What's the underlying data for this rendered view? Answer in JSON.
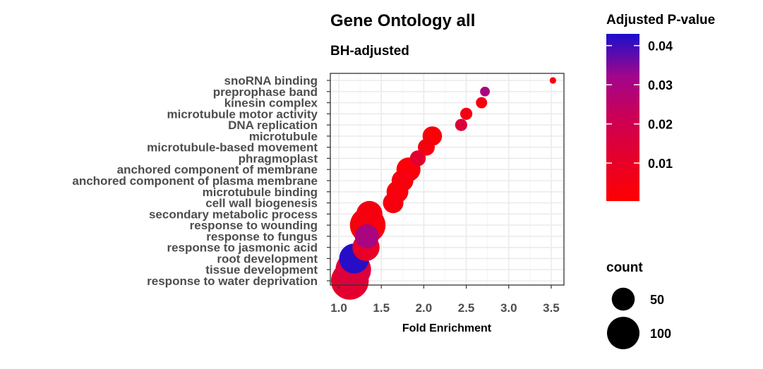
{
  "chart_data": {
    "type": "scatter",
    "title": "Gene Ontology all",
    "subtitle": "BH-adjusted",
    "xlabel": "Fold Enrichment",
    "xlim": [
      0.9,
      3.65
    ],
    "xticks": [
      1.0,
      1.5,
      2.0,
      2.5,
      3.0,
      3.5
    ],
    "xtick_labels": [
      "1.0",
      "1.5",
      "2.0",
      "2.5",
      "3.0",
      "3.5"
    ],
    "grid": true,
    "categories": [
      "snoRNA binding",
      "preprophase band",
      "kinesin complex",
      "microtubule motor activity",
      "DNA replication",
      "microtubule",
      "microtubule-based movement",
      "phragmoplast",
      "anchored component of membrane",
      "anchored component of plasma membrane",
      "microtubule binding",
      "cell wall biogenesis",
      "secondary metabolic process",
      "response to wounding",
      "response to fungus",
      "response to jasmonic acid",
      "root development",
      "tissue development",
      "response to water deprivation"
    ],
    "points": [
      {
        "term": "snoRNA binding",
        "fold_enrichment": 3.52,
        "count": 4,
        "p_adj": 0.003
      },
      {
        "term": "preprophase band",
        "fold_enrichment": 2.72,
        "count": 9,
        "p_adj": 0.03
      },
      {
        "term": "kinesin complex",
        "fold_enrichment": 2.68,
        "count": 12,
        "p_adj": 0.004
      },
      {
        "term": "microtubule motor activity",
        "fold_enrichment": 2.5,
        "count": 14,
        "p_adj": 0.005
      },
      {
        "term": "DNA replication",
        "fold_enrichment": 2.44,
        "count": 14,
        "p_adj": 0.015
      },
      {
        "term": "microtubule",
        "fold_enrichment": 2.1,
        "count": 36,
        "p_adj": 0.002
      },
      {
        "term": "microtubule-based movement",
        "fold_enrichment": 2.03,
        "count": 27,
        "p_adj": 0.004
      },
      {
        "term": "phragmoplast",
        "fold_enrichment": 1.93,
        "count": 24,
        "p_adj": 0.012
      },
      {
        "term": "anchored component of membrane",
        "fold_enrichment": 1.82,
        "count": 55,
        "p_adj": 0.002
      },
      {
        "term": "anchored component of plasma membrane",
        "fold_enrichment": 1.75,
        "count": 45,
        "p_adj": 0.004
      },
      {
        "term": "microtubule binding",
        "fold_enrichment": 1.69,
        "count": 45,
        "p_adj": 0.003
      },
      {
        "term": "cell wall biogenesis",
        "fold_enrichment": 1.64,
        "count": 40,
        "p_adj": 0.004
      },
      {
        "term": "secondary metabolic process",
        "fold_enrichment": 1.36,
        "count": 65,
        "p_adj": 0.004
      },
      {
        "term": "response to wounding",
        "fold_enrichment": 1.34,
        "count": 120,
        "p_adj": 0.003
      },
      {
        "term": "response to fungus",
        "fold_enrichment": 1.33,
        "count": 55,
        "p_adj": 0.03
      },
      {
        "term": "response to jasmonic acid",
        "fold_enrichment": 1.32,
        "count": 70,
        "p_adj": 0.01
      },
      {
        "term": "root development",
        "fold_enrichment": 1.18,
        "count": 85,
        "p_adj": 0.042
      },
      {
        "term": "tissue development",
        "fold_enrichment": 1.17,
        "count": 120,
        "p_adj": 0.015
      },
      {
        "term": "response to water deprivation",
        "fold_enrichment": 1.13,
        "count": 135,
        "p_adj": 0.012
      }
    ],
    "legend_color": {
      "title": "Adjusted P-value",
      "range": [
        0.0003,
        0.043
      ],
      "ticks": [
        0.04,
        0.03,
        0.02,
        0.01
      ],
      "tick_labels": [
        "0.04",
        "0.03",
        "0.02",
        "0.01"
      ],
      "low_color": "#ff0000",
      "high_color": "#1a0fcc"
    },
    "legend_size": {
      "title": "count",
      "values": [
        50,
        100
      ],
      "labels": [
        "50",
        "100"
      ]
    }
  }
}
